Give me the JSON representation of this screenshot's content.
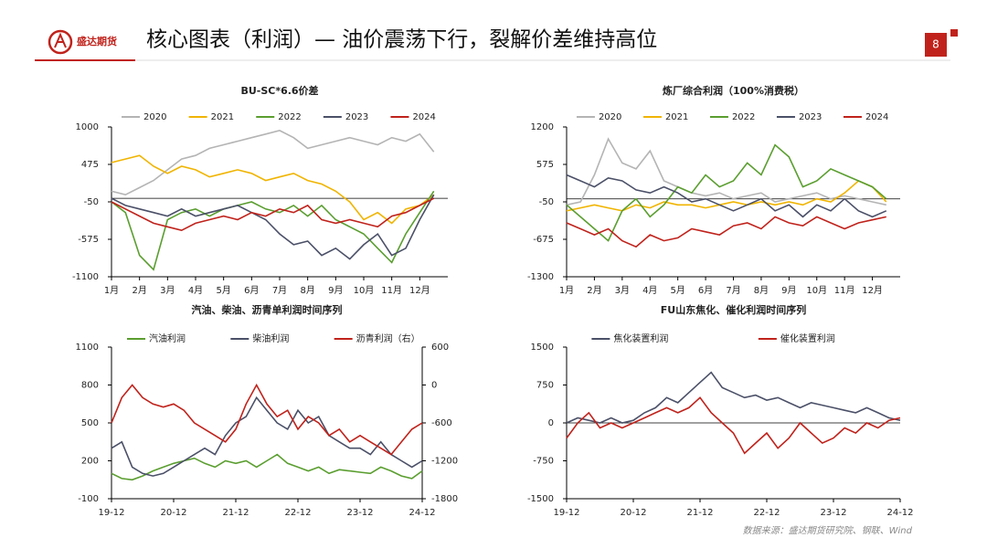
{
  "header": {
    "logo": "盛达期货",
    "title": "核心图表（利润）— 油价震荡下行，裂解价差维持高位",
    "page": "8"
  },
  "source": "数据来源：盛达期货研究院、钢联、Wind",
  "chart_data": [
    {
      "type": "line",
      "title": "BU-SC*6.6价差",
      "zero_line": true,
      "x": [
        1,
        1.5,
        2,
        2.5,
        3,
        3.5,
        4,
        4.5,
        5,
        5.5,
        6,
        6.5,
        7,
        7.5,
        8,
        8.5,
        9,
        9.5,
        10,
        10.5,
        11,
        11.5,
        12,
        12.5
      ],
      "xlim": [
        1,
        13
      ],
      "xticks": [
        {
          "value": 1,
          "label": "1月"
        },
        {
          "value": 2,
          "label": "2月"
        },
        {
          "value": 3,
          "label": "3月"
        },
        {
          "value": 4,
          "label": "4月"
        },
        {
          "value": 5,
          "label": "5月"
        },
        {
          "value": 6,
          "label": "6月"
        },
        {
          "value": 7,
          "label": "7月"
        },
        {
          "value": 8,
          "label": "8月"
        },
        {
          "value": 9,
          "label": "9月"
        },
        {
          "value": 10,
          "label": "10月"
        },
        {
          "value": 11,
          "label": "11月"
        },
        {
          "value": 12,
          "label": "12月"
        }
      ],
      "ylim": [
        -1100,
        1000
      ],
      "yticks": [
        -1100,
        -575,
        -50,
        475,
        1000
      ],
      "series": [
        {
          "name": "2020",
          "color": "#b4b4b4",
          "values": [
            100,
            50,
            150,
            250,
            400,
            550,
            600,
            700,
            750,
            800,
            850,
            900,
            950,
            850,
            700,
            750,
            800,
            850,
            800,
            750,
            850,
            800,
            900,
            650
          ]
        },
        {
          "name": "2021",
          "color": "#f0b400",
          "values": [
            500,
            550,
            600,
            450,
            350,
            450,
            400,
            300,
            350,
            400,
            350,
            250,
            300,
            350,
            250,
            200,
            100,
            -50,
            -300,
            -200,
            -350,
            -150,
            -100,
            50
          ]
        },
        {
          "name": "2022",
          "color": "#5a9e2f",
          "values": [
            -50,
            -200,
            -800,
            -1000,
            -300,
            -200,
            -150,
            -250,
            -150,
            -100,
            -50,
            -150,
            -200,
            -100,
            -250,
            -100,
            -300,
            -400,
            -500,
            -700,
            -900,
            -500,
            -200,
            100
          ]
        },
        {
          "name": "2023",
          "color": "#4b5068",
          "values": [
            0,
            -100,
            -150,
            -200,
            -250,
            -150,
            -250,
            -200,
            -150,
            -100,
            -200,
            -300,
            -500,
            -650,
            -600,
            -800,
            -700,
            -850,
            -650,
            -500,
            -800,
            -700,
            -300,
            50
          ]
        },
        {
          "name": "2024",
          "color": "#c0221b",
          "values": [
            -50,
            -150,
            -250,
            -350,
            -400,
            -450,
            -350,
            -300,
            -250,
            -300,
            -200,
            -250,
            -150,
            -200,
            -100,
            -300,
            -350,
            -300,
            -350,
            -400,
            -250,
            -200,
            -100,
            0
          ]
        }
      ]
    },
    {
      "type": "line",
      "title": "炼厂综合利润（100%消费税）",
      "zero_line": true,
      "x": [
        1,
        1.5,
        2,
        2.5,
        3,
        3.5,
        4,
        4.5,
        5,
        5.5,
        6,
        6.5,
        7,
        7.5,
        8,
        8.5,
        9,
        9.5,
        10,
        10.5,
        11,
        11.5,
        12,
        12.5
      ],
      "xlim": [
        1,
        13
      ],
      "xticks": [
        {
          "value": 1,
          "label": "1月"
        },
        {
          "value": 2,
          "label": "2月"
        },
        {
          "value": 3,
          "label": "3月"
        },
        {
          "value": 4,
          "label": "4月"
        },
        {
          "value": 5,
          "label": "5月"
        },
        {
          "value": 6,
          "label": "6月"
        },
        {
          "value": 7,
          "label": "7月"
        },
        {
          "value": 8,
          "label": "8月"
        },
        {
          "value": 9,
          "label": "9月"
        },
        {
          "value": 10,
          "label": "10月"
        },
        {
          "value": 11,
          "label": "11月"
        },
        {
          "value": 12,
          "label": "12月"
        }
      ],
      "ylim": [
        -1300,
        1200
      ],
      "yticks": [
        -1300,
        -675,
        -50,
        575,
        1200
      ],
      "series": [
        {
          "name": "2020",
          "color": "#b4b4b4",
          "values": [
            -100,
            -50,
            400,
            1000,
            600,
            500,
            800,
            300,
            200,
            100,
            50,
            100,
            0,
            50,
            100,
            -50,
            0,
            50,
            100,
            0,
            50,
            0,
            -50,
            -100
          ]
        },
        {
          "name": "2021",
          "color": "#f0b400",
          "values": [
            -200,
            -150,
            -100,
            -150,
            -200,
            -100,
            -150,
            -50,
            -100,
            -100,
            -150,
            -100,
            -50,
            -100,
            -50,
            -100,
            -50,
            -100,
            0,
            -50,
            100,
            300,
            200,
            -50
          ]
        },
        {
          "name": "2022",
          "color": "#5a9e2f",
          "values": [
            -100,
            -300,
            -500,
            -700,
            -200,
            0,
            -300,
            -100,
            200,
            100,
            400,
            200,
            300,
            600,
            400,
            900,
            700,
            200,
            300,
            500,
            400,
            300,
            200,
            0
          ]
        },
        {
          "name": "2023",
          "color": "#4b5068",
          "values": [
            400,
            300,
            200,
            350,
            300,
            150,
            100,
            200,
            100,
            -50,
            0,
            -100,
            -200,
            -100,
            0,
            -200,
            -100,
            -300,
            -100,
            -200,
            0,
            -200,
            -300,
            -200
          ]
        },
        {
          "name": "2024",
          "color": "#c0221b",
          "values": [
            -400,
            -500,
            -600,
            -500,
            -700,
            -800,
            -600,
            -700,
            -650,
            -500,
            -550,
            -600,
            -450,
            -400,
            -500,
            -300,
            -400,
            -450,
            -300,
            -400,
            -500,
            -400,
            -350,
            -300
          ]
        }
      ]
    },
    {
      "type": "line",
      "title": "汽油、柴油、沥青单利润时间序列",
      "zero_line": false,
      "x": [
        0,
        2,
        4,
        6,
        8,
        10,
        12,
        14,
        16,
        18,
        20,
        22,
        24,
        26,
        28,
        30,
        32,
        34,
        36,
        38,
        40,
        42,
        44,
        46,
        48,
        50,
        52,
        54,
        56,
        58,
        60
      ],
      "xlim": [
        0,
        60
      ],
      "xticks": [
        {
          "value": 0,
          "label": "19-12"
        },
        {
          "value": 12,
          "label": "20-12"
        },
        {
          "value": 24,
          "label": "21-12"
        },
        {
          "value": 36,
          "label": "22-12"
        },
        {
          "value": 48,
          "label": "23-12"
        },
        {
          "value": 60,
          "label": "24-12"
        }
      ],
      "ylim": [
        -100,
        1100
      ],
      "yticks": [
        -100,
        200,
        500,
        800,
        1100
      ],
      "y2lim": [
        -1800,
        600
      ],
      "y2ticks": [
        -1800,
        -1200,
        -600,
        0,
        600
      ],
      "series": [
        {
          "name": "汽油利润",
          "color": "#5a9e2f",
          "values": [
            100,
            60,
            50,
            80,
            120,
            150,
            180,
            200,
            220,
            180,
            150,
            200,
            180,
            200,
            150,
            200,
            250,
            180,
            150,
            120,
            150,
            100,
            130,
            120,
            110,
            100,
            150,
            120,
            80,
            60,
            120
          ]
        },
        {
          "name": "柴油利润",
          "color": "#4b5068",
          "values": [
            300,
            350,
            150,
            100,
            80,
            100,
            150,
            200,
            250,
            300,
            250,
            400,
            500,
            550,
            700,
            600,
            500,
            450,
            600,
            500,
            550,
            400,
            350,
            300,
            300,
            250,
            350,
            250,
            200,
            150,
            200
          ]
        },
        {
          "name": "沥青利润（右）",
          "color": "#c0221b",
          "axis": "y2",
          "values": [
            -600,
            -200,
            0,
            -200,
            -300,
            -350,
            -300,
            -400,
            -600,
            -700,
            -800,
            -900,
            -700,
            -300,
            0,
            -300,
            -500,
            -400,
            -700,
            -500,
            -600,
            -800,
            -700,
            -900,
            -800,
            -900,
            -1000,
            -1100,
            -900,
            -700,
            -600
          ]
        }
      ]
    },
    {
      "type": "line",
      "title": "FU山东焦化、催化利润时间序列",
      "zero_line": true,
      "x": [
        0,
        2,
        4,
        6,
        8,
        10,
        12,
        14,
        16,
        18,
        20,
        22,
        24,
        26,
        28,
        30,
        32,
        34,
        36,
        38,
        40,
        42,
        44,
        46,
        48,
        50,
        52,
        54,
        56,
        58,
        60
      ],
      "xlim": [
        0,
        60
      ],
      "xticks": [
        {
          "value": 0,
          "label": "19-12"
        },
        {
          "value": 12,
          "label": "20-12"
        },
        {
          "value": 24,
          "label": "21-12"
        },
        {
          "value": 36,
          "label": "22-12"
        },
        {
          "value": 48,
          "label": "23-12"
        },
        {
          "value": 60,
          "label": "24-12"
        }
      ],
      "ylim": [
        -1500,
        1500
      ],
      "yticks": [
        -1500,
        -750,
        0,
        750,
        1500
      ],
      "series": [
        {
          "name": "焦化装置利润",
          "color": "#4b5068",
          "values": [
            0,
            100,
            50,
            0,
            100,
            0,
            50,
            200,
            300,
            500,
            400,
            600,
            800,
            1000,
            700,
            600,
            500,
            550,
            450,
            500,
            400,
            300,
            400,
            350,
            300,
            250,
            200,
            300,
            200,
            100,
            50
          ]
        },
        {
          "name": "催化装置利润",
          "color": "#c0221b",
          "values": [
            -300,
            0,
            200,
            -100,
            0,
            -100,
            0,
            100,
            200,
            300,
            200,
            300,
            500,
            200,
            0,
            -200,
            -600,
            -400,
            -200,
            -500,
            -300,
            0,
            -200,
            -400,
            -300,
            -100,
            -200,
            0,
            -100,
            50,
            100
          ]
        }
      ]
    }
  ]
}
